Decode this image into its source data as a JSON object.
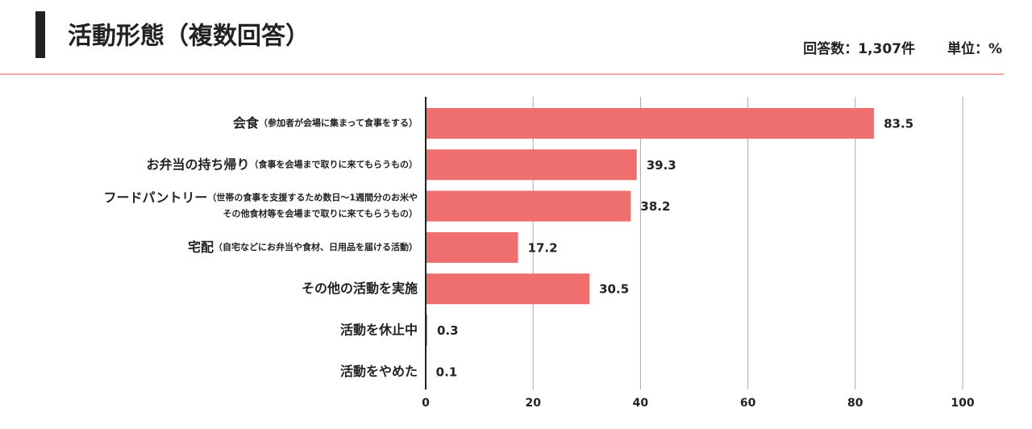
{
  "chart_data": {
    "type": "bar",
    "orientation": "horizontal",
    "title": "活動形態（複数回答）",
    "response_count": "回答数：1,307件",
    "unit": "単位：%",
    "categories": [
      "会食",
      "お弁当の持ち帰り",
      "フードパントリー",
      "宅配",
      "その他の活動を実施",
      "活動を休止中",
      "活動をやめた"
    ],
    "category_notes": [
      [
        "（参加者が会場に集まって食事をする）"
      ],
      [
        "（食事を会場まで取りに来てもらうもの）"
      ],
      [
        "（世帯の食事を支援するため数日～1週間分のお米や",
        "その他食材等を会場まで取りに来てもらうもの）"
      ],
      [
        "（自宅などにお弁当や食材、日用品を届ける活動）"
      ],
      null,
      null,
      null
    ],
    "values": [
      83.5,
      39.3,
      38.2,
      17.2,
      30.5,
      0.3,
      0.1
    ],
    "color": "#ef6e6e",
    "xlim": [
      0,
      100
    ],
    "xticks": [
      0,
      20,
      40,
      60,
      80,
      100
    ],
    "grid": true
  }
}
